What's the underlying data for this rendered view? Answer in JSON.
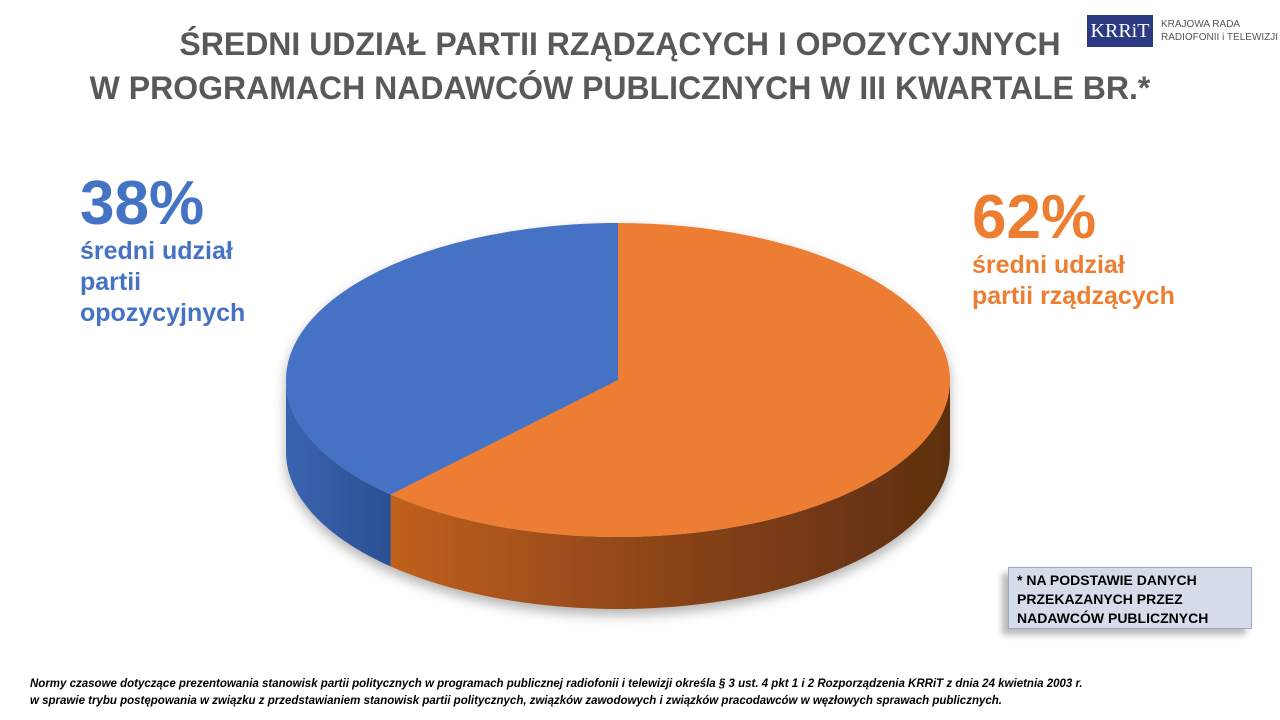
{
  "title": [
    "ŚREDNI UDZIAŁ PARTII RZĄDZĄCYCH I OPOZYCYJNYCH",
    "W PROGRAMACH NADAWCÓW PUBLICZNYCH W III KWARTALE BR.*"
  ],
  "logo": {
    "mark": "KRRiT",
    "line1": "KRAJOWA RADA",
    "line2": "RADIOFONII i TELEWIZJI"
  },
  "chart_data": {
    "type": "pie",
    "style": "3d",
    "title": "ŚREDNI UDZIAŁ PARTII RZĄDZĄCYCH I OPOZYCYJNYCH W PROGRAMACH NADAWCÓW PUBLICZNYCH W III KWARTALE BR.*",
    "slices": [
      {
        "label": "średni udział partii rządzących",
        "value": 62,
        "pct_label": "62%",
        "desc": [
          "średni udział",
          "partii rządzących"
        ],
        "color": "#ed7d31"
      },
      {
        "label": "średni udział partii opozycyjnych",
        "value": 38,
        "pct_label": "38%",
        "desc": [
          "średni udział",
          "partii",
          "opozycyjnych"
        ],
        "color": "#4472c4"
      }
    ]
  },
  "note": [
    "* NA PODSTAWIE DANYCH",
    "PRZEKAZANYCH PRZEZ",
    "NADAWCÓW PUBLICZNYCH"
  ],
  "footer": [
    "Normy czasowe dotyczące prezentowania stanowisk partii politycznych w programach publicznej radiofonii i telewizji określa  § 3 ust. 4 pkt 1 i 2 Rozporządzenia KRRiT z dnia 24 kwietnia 2003 r.",
    "w sprawie trybu postępowania w związku z przedstawianiem stanowisk partii politycznych, związków zawodowych i związków pracodawców w węzłowych sprawach publicznych."
  ]
}
